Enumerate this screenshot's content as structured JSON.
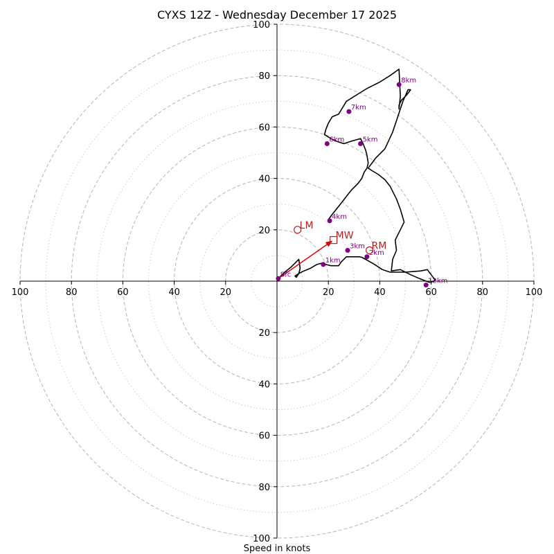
{
  "chart_data": {
    "type": "line",
    "title": "CYXS 12Z - Wednesday December 17 2025",
    "xlabel": "Speed in knots",
    "ylabel": "",
    "xlim": [
      -100,
      100
    ],
    "ylim": [
      -100,
      100
    ],
    "major_rings": [
      20,
      40,
      60,
      80,
      100
    ],
    "minor_rings": [
      10,
      30,
      50,
      70,
      90
    ],
    "tick_values": [
      20,
      40,
      60,
      80,
      100
    ],
    "tick_labels": {
      "x_right": [
        "20",
        "40",
        "60",
        "80",
        "100"
      ],
      "x_left": [
        "20",
        "40",
        "60",
        "80",
        "100"
      ],
      "y_top": [
        "20",
        "40",
        "60",
        "80",
        "100"
      ],
      "y_bottom": [
        "20",
        "40",
        "60",
        "80",
        "100"
      ]
    },
    "colors": {
      "trace": "#000000",
      "heights": "#800080",
      "motion": "#b22222",
      "arrow": "#e00000",
      "grid": "#bbbbbb"
    },
    "series": [
      {
        "name": "hodograph",
        "u": [
          0.5,
          3,
          5.5,
          7.5,
          8.5,
          9,
          8.5,
          7.5,
          7,
          8.5,
          10.5,
          13,
          15.5,
          17.5,
          19,
          21,
          24,
          25,
          27,
          30,
          32,
          33,
          34.5,
          38,
          41,
          44,
          47,
          50,
          53.5,
          56,
          58.5,
          60,
          61.5,
          61,
          59.5,
          58,
          55.5,
          52,
          48,
          44.5,
          45,
          46.5,
          46,
          48,
          49.5,
          48,
          46.5,
          44,
          42,
          39.5,
          37,
          35.5,
          38.5,
          42,
          45,
          47,
          49,
          51,
          52,
          50.5,
          48.5,
          47.5,
          47.5,
          48,
          47.5,
          44,
          40,
          35,
          31,
          27,
          25.5,
          24,
          21.5,
          20,
          19,
          18.5,
          21,
          23,
          26,
          29,
          32.5,
          33.5,
          34.5,
          35,
          35.5,
          35,
          34,
          33,
          31.5,
          29,
          27,
          25.5,
          23.5,
          21.5,
          20
        ],
        "v": [
          1,
          3.5,
          5.5,
          7.5,
          8.5,
          5,
          3,
          1.5,
          2,
          3,
          4,
          5,
          6.5,
          7,
          6.5,
          6,
          6,
          7.5,
          9.5,
          9.5,
          9.5,
          9.3,
          8.5,
          6.5,
          4.5,
          3.5,
          3.5,
          3.5,
          3.8,
          4,
          4.5,
          2.5,
          0.5,
          0,
          -0.5,
          0,
          1,
          2.5,
          4.5,
          4,
          8.5,
          12,
          16,
          20,
          23,
          28,
          32,
          37,
          39.5,
          41.5,
          43,
          44,
          48,
          51.5,
          58,
          64,
          70,
          74.5,
          74.5,
          72.5,
          70.5,
          68.5,
          67,
          72,
          82.5,
          80,
          77.5,
          75,
          72.5,
          70,
          67.5,
          65,
          64,
          61.5,
          59,
          57,
          55.5,
          54.5,
          53.5,
          54.5,
          55.5,
          53.5,
          51,
          49,
          46,
          44,
          42.5,
          40,
          38,
          35.5,
          33,
          31,
          28.5,
          26,
          24
        ]
      }
    ],
    "height_markers": [
      {
        "label": "Sfc",
        "u": 0.5,
        "v": 1
      },
      {
        "label": "1km",
        "u": 18,
        "v": 6.5
      },
      {
        "label": "2km",
        "u": 35,
        "v": 9.5
      },
      {
        "label": "3km",
        "u": 27.5,
        "v": 12
      },
      {
        "label": "4km",
        "u": 20.5,
        "v": 23.5
      },
      {
        "label": "5km",
        "u": 32.5,
        "v": 53.5
      },
      {
        "label": "6km",
        "u": 19.5,
        "v": 53.5
      },
      {
        "label": "7km",
        "u": 28,
        "v": 66
      },
      {
        "label": "8km",
        "u": 47.5,
        "v": 76.5
      },
      {
        "label": "12km",
        "u": 58,
        "v": -1.5
      }
    ],
    "motion_markers": [
      {
        "label": "LM",
        "u": 8,
        "v": 20,
        "shape": "circle"
      },
      {
        "label": "MW",
        "u": 22,
        "v": 16,
        "shape": "square"
      },
      {
        "label": "RM",
        "u": 36,
        "v": 12,
        "shape": "circle"
      }
    ],
    "mean_wind_arrow": {
      "from": [
        0.5,
        1
      ],
      "to": [
        22,
        16
      ]
    }
  }
}
